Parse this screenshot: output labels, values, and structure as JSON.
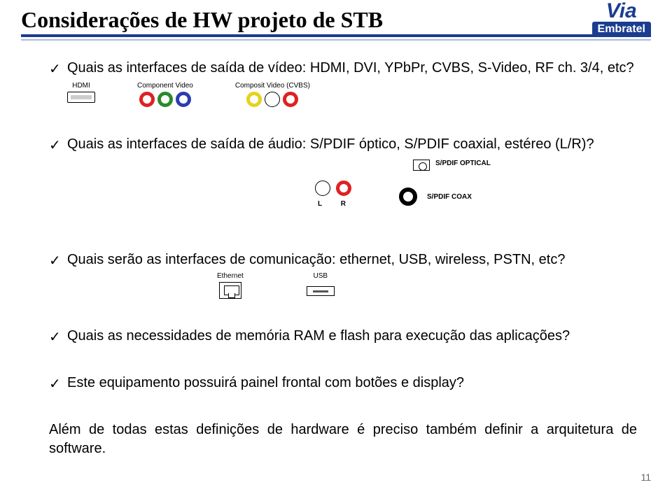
{
  "header": {
    "title": "Considerações de HW projeto  de STB",
    "logo_top": "Via",
    "logo_bottom": "Embratel"
  },
  "colors": {
    "brand_blue": "#1a3d8f",
    "stripe_light": "#a9b9e0",
    "ring_red": "#d22",
    "ring_green": "#2a8a2a",
    "ring_blue": "#2c3db0",
    "ring_yellow": "#e6d21e"
  },
  "bullets": {
    "b1": "Quais as interfaces de saída de vídeo: HDMI, DVI, YPbPr, CVBS, S-Video, RF ch. 3/4, etc?",
    "b2": "Quais as interfaces de saída de áudio: S/PDIF óptico, S/PDIF coaxial, estéreo (L/R)?",
    "b3": "Quais serão as interfaces de comunicação: ethernet, USB, wireless, PSTN, etc?",
    "b4": "Quais as necessidades de memória RAM e flash para execução das aplicações?",
    "b5": "Este equipamento possuirá painel frontal com botões e display?",
    "b6": "Além de todas estas definições de hardware é preciso também definir a arquitetura de software."
  },
  "connectors": {
    "hdmi_label": "HDMI",
    "component_label": "Component Video",
    "composite_label": "Composit Video (CVBS)",
    "component_colors": [
      "#d22",
      "#2a8a2a",
      "#2c3db0"
    ],
    "composite_colors": [
      "#e6d21e",
      "#ffffff",
      "#d22"
    ],
    "lr_text": "L   R",
    "optical_label": "S/PDIF OPTICAL",
    "coax_label": "S/PDIF COAX",
    "ethernet_label": "Ethernet",
    "usb_label": "USB"
  },
  "page_number": "11"
}
